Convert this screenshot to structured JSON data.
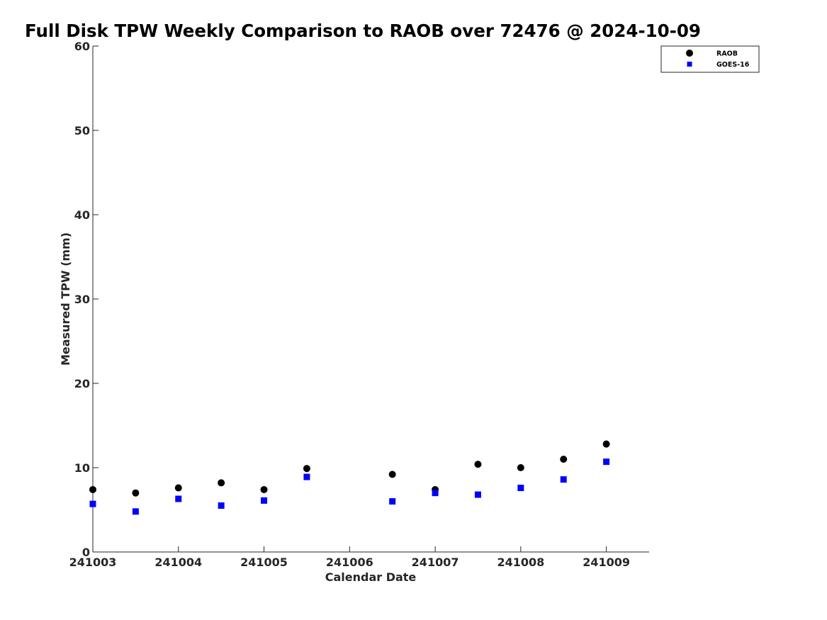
{
  "chart_data": {
    "type": "scatter",
    "title": "Full Disk TPW Weekly Comparison to RAOB over 72476 @ 2024-10-09",
    "xlabel": "Calendar Date",
    "ylabel": "Measured TPW (mm)",
    "x_ticks": [
      "241003",
      "241004",
      "241005",
      "241006",
      "241007",
      "241008",
      "241009"
    ],
    "xlim": [
      "241003",
      "241009.5"
    ],
    "ylim": [
      0,
      60
    ],
    "y_ticks": [
      0,
      10,
      20,
      30,
      40,
      50,
      60
    ],
    "grid": false,
    "legend_position": "top-right",
    "series": [
      {
        "name": "RAOB",
        "marker": "circle",
        "color": "#000000",
        "x": [
          "241003",
          "241003.5",
          "241004",
          "241004.5",
          "241005",
          "241005.5",
          "241006.5",
          "241007",
          "241007.5",
          "241008",
          "241008.5",
          "241009"
        ],
        "values": [
          7.4,
          7.0,
          7.6,
          8.2,
          7.4,
          9.9,
          9.2,
          7.4,
          10.4,
          10.0,
          11.0,
          12.8
        ]
      },
      {
        "name": "GOES-16",
        "marker": "square",
        "color": "#0000ff",
        "x": [
          "241003",
          "241003.5",
          "241004",
          "241004.5",
          "241005",
          "241005.5",
          "241006.5",
          "241007",
          "241007.5",
          "241008",
          "241008.5",
          "241009"
        ],
        "values": [
          5.7,
          4.8,
          6.3,
          5.5,
          6.1,
          8.9,
          6.0,
          7.0,
          6.8,
          7.6,
          8.6,
          10.7
        ]
      }
    ]
  }
}
